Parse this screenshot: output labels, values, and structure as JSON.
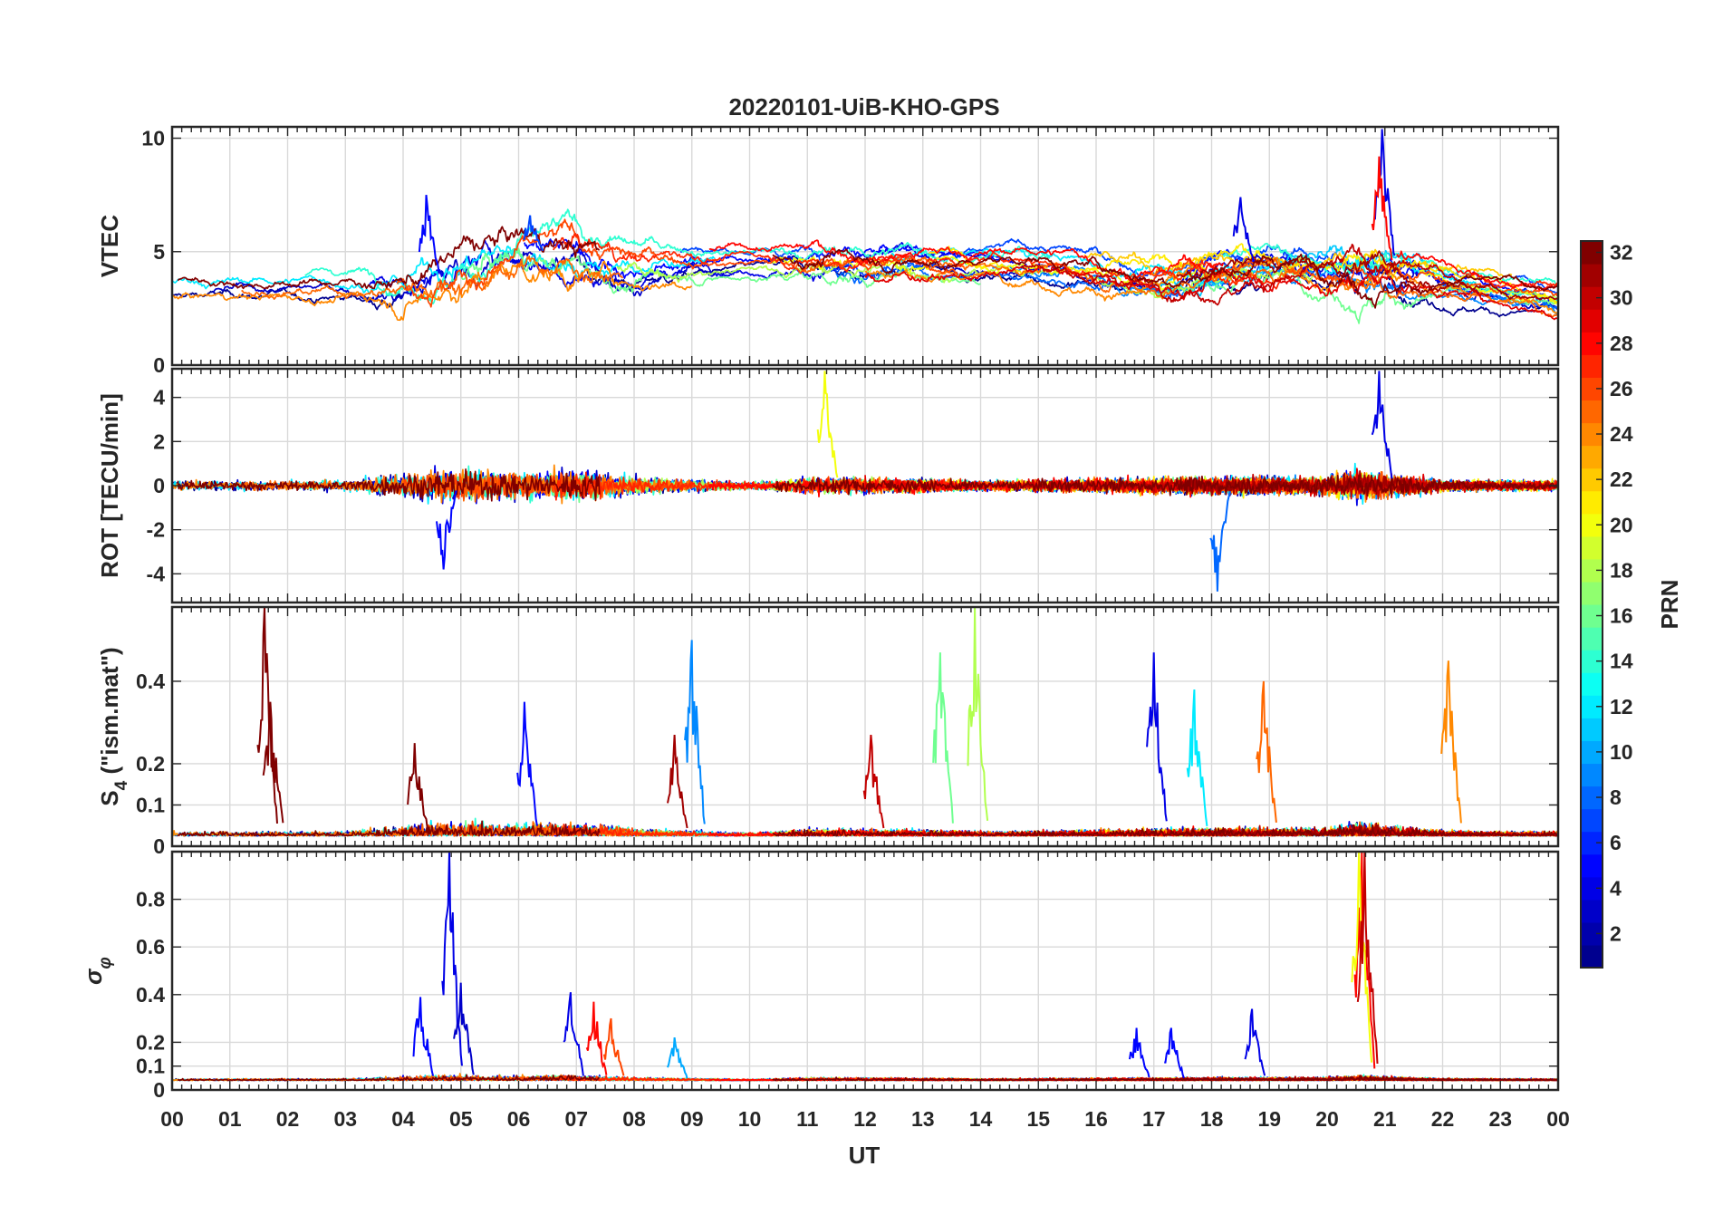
{
  "chart_data": {
    "title": "20220101-UiB-KHO-GPS",
    "type": "line",
    "x_ticks": [
      "00",
      "01",
      "02",
      "03",
      "04",
      "05",
      "06",
      "07",
      "08",
      "09",
      "10",
      "11",
      "12",
      "13",
      "14",
      "15",
      "16",
      "17",
      "18",
      "19",
      "20",
      "21",
      "22",
      "23",
      "00"
    ],
    "xlabel": "UT",
    "xlim": [
      0,
      24
    ],
    "grid": true,
    "colorbar": {
      "label": "PRN",
      "ticks": [
        "2",
        "4",
        "6",
        "8",
        "10",
        "12",
        "14",
        "16",
        "18",
        "20",
        "22",
        "24",
        "26",
        "28",
        "30",
        "32"
      ],
      "range": [
        1,
        32
      ],
      "colormap": "jet",
      "colors": [
        "#00008f",
        "#0000ff",
        "#0080ff",
        "#00ffff",
        "#80ff80",
        "#ffff00",
        "#ff8000",
        "#ff0000",
        "#800000"
      ]
    },
    "panels": [
      {
        "id": "vtec",
        "ylabel": "VTEC",
        "ylim": [
          0,
          10.5
        ],
        "y_ticks": [
          {
            "v": 0,
            "l": "0"
          },
          {
            "v": 5,
            "l": "5"
          },
          {
            "v": 10,
            "l": "10"
          }
        ],
        "series_note": "one line per PRN",
        "envelope": {
          "x": [
            0,
            2,
            4,
            5,
            6,
            7,
            8,
            9,
            10,
            11,
            12,
            13,
            14,
            15,
            16,
            17,
            18,
            19,
            20,
            21,
            22,
            23,
            24
          ],
          "y": [
            3.5,
            3.5,
            3.5,
            4.5,
            5,
            4.8,
            4.3,
            4.6,
            4.6,
            4.5,
            4.5,
            4.6,
            4.5,
            4.6,
            4.2,
            3.8,
            4.2,
            4.6,
            4.3,
            4.4,
            4,
            3.4,
            3
          ]
        }
      },
      {
        "id": "rot",
        "ylabel": "ROT [TECU/min]",
        "ylim": [
          -5.3,
          5.3
        ],
        "y_ticks": [
          {
            "v": -4,
            "l": "-4"
          },
          {
            "v": -2,
            "l": "-2"
          },
          {
            "v": 0,
            "l": "0"
          },
          {
            "v": 2,
            "l": "2"
          },
          {
            "v": 4,
            "l": "4"
          }
        ]
      },
      {
        "id": "s4",
        "ylabel": "S",
        "ylabel_sub": "4",
        "ylabel_suffix": " (\"ism.mat\")",
        "ylim": [
          0,
          0.58
        ],
        "y_ticks": [
          {
            "v": 0,
            "l": "0"
          },
          {
            "v": 0.1,
            "l": "0.1"
          },
          {
            "v": 0.2,
            "l": "0.2"
          },
          {
            "v": 0.4,
            "l": "0.4"
          }
        ]
      },
      {
        "id": "sigma",
        "ylabel": "σ",
        "ylabel_sub": "φ",
        "ylim": [
          0,
          1.0
        ],
        "y_ticks": [
          {
            "v": 0,
            "l": "0"
          },
          {
            "v": 0.1,
            "l": "0.1"
          },
          {
            "v": 0.2,
            "l": "0.2"
          },
          {
            "v": 0.4,
            "l": "0.4"
          },
          {
            "v": 0.6,
            "l": "0.6"
          },
          {
            "v": 0.8,
            "l": "0.8"
          }
        ]
      }
    ],
    "peaks": {
      "vtec": [
        [
          20.95,
          10.4,
          4
        ],
        [
          20.9,
          9.2,
          28
        ],
        [
          4.4,
          7.5,
          5
        ],
        [
          6.2,
          6.6,
          7
        ],
        [
          18.5,
          7.4,
          4
        ]
      ],
      "rot": [
        [
          20.9,
          5.2,
          4
        ],
        [
          11.3,
          5.2,
          20
        ],
        [
          18.1,
          -4.8,
          8
        ],
        [
          4.7,
          -3.8,
          5
        ]
      ],
      "s4": [
        [
          1.6,
          0.58,
          32
        ],
        [
          1.7,
          0.35,
          32
        ],
        [
          13.9,
          0.58,
          18
        ],
        [
          13.3,
          0.47,
          16
        ],
        [
          17.0,
          0.47,
          4
        ],
        [
          9.0,
          0.5,
          9
        ],
        [
          22.1,
          0.45,
          24
        ],
        [
          6.1,
          0.35,
          5
        ],
        [
          18.9,
          0.4,
          25
        ],
        [
          17.7,
          0.38,
          12
        ],
        [
          4.2,
          0.25,
          32
        ],
        [
          12.1,
          0.27,
          30
        ],
        [
          8.7,
          0.27,
          31
        ]
      ],
      "sigma": [
        [
          4.8,
          1.0,
          4
        ],
        [
          20.6,
          1.0,
          28
        ],
        [
          20.55,
          1.0,
          20
        ],
        [
          20.65,
          1.0,
          30
        ],
        [
          4.3,
          0.39,
          5
        ],
        [
          5.0,
          0.45,
          3
        ],
        [
          6.9,
          0.41,
          4
        ],
        [
          18.7,
          0.34,
          4
        ],
        [
          16.7,
          0.26,
          5
        ],
        [
          17.3,
          0.26,
          5
        ],
        [
          7.3,
          0.37,
          28
        ],
        [
          7.6,
          0.3,
          26
        ],
        [
          8.7,
          0.22,
          10
        ]
      ]
    }
  }
}
